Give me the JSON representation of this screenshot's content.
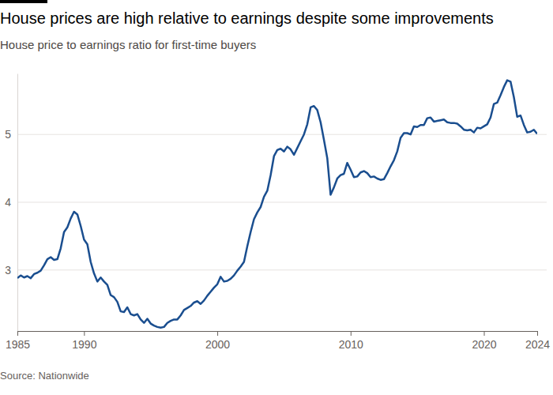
{
  "chart_data": {
    "type": "line",
    "title": "House prices are high relative to earnings despite some improvements",
    "subtitle": "House price to earnings ratio for first-time buyers",
    "source": "Source: Nationwide",
    "color": "#1a4e8f",
    "grid": true,
    "xlim": [
      1985,
      2024
    ],
    "xticks": [
      1985,
      1990,
      2000,
      2010,
      2020,
      2024
    ],
    "ylim": [
      2.1,
      5.9
    ],
    "yticks": [
      3,
      4,
      5
    ],
    "x": [
      1985,
      1985.25,
      1985.5,
      1985.75,
      1986,
      1986.25,
      1986.5,
      1986.75,
      1987,
      1987.25,
      1987.5,
      1987.75,
      1988,
      1988.25,
      1988.5,
      1988.75,
      1989,
      1989.25,
      1989.5,
      1989.75,
      1990,
      1990.25,
      1990.5,
      1990.75,
      1991,
      1991.25,
      1991.5,
      1991.75,
      1992,
      1992.25,
      1992.5,
      1992.75,
      1993,
      1993.25,
      1993.5,
      1993.75,
      1994,
      1994.25,
      1994.5,
      1994.75,
      1995,
      1995.25,
      1995.5,
      1995.75,
      1996,
      1996.25,
      1996.5,
      1996.75,
      1997,
      1997.25,
      1997.5,
      1997.75,
      1998,
      1998.25,
      1998.5,
      1998.75,
      1999,
      1999.25,
      1999.5,
      1999.75,
      2000,
      2000.25,
      2000.5,
      2000.75,
      2001,
      2001.25,
      2001.5,
      2001.75,
      2002,
      2002.25,
      2002.5,
      2002.75,
      2003,
      2003.25,
      2003.5,
      2003.75,
      2004,
      2004.25,
      2004.5,
      2004.75,
      2005,
      2005.25,
      2005.5,
      2005.75,
      2006,
      2006.25,
      2006.5,
      2006.75,
      2007,
      2007.25,
      2007.5,
      2007.75,
      2008,
      2008.25,
      2008.5,
      2008.75,
      2009,
      2009.25,
      2009.5,
      2009.75,
      2010,
      2010.25,
      2010.5,
      2010.75,
      2011,
      2011.25,
      2011.5,
      2011.75,
      2012,
      2012.25,
      2012.5,
      2012.75,
      2013,
      2013.25,
      2013.5,
      2013.75,
      2014,
      2014.25,
      2014.5,
      2014.75,
      2015,
      2015.25,
      2015.5,
      2015.75,
      2016,
      2016.25,
      2016.5,
      2016.75,
      2017,
      2017.25,
      2017.5,
      2017.75,
      2018,
      2018.25,
      2018.5,
      2018.75,
      2019,
      2019.25,
      2019.5,
      2019.75,
      2020,
      2020.25,
      2020.5,
      2020.75,
      2021,
      2021.25,
      2021.5,
      2021.75,
      2022,
      2022.25,
      2022.5,
      2022.75,
      2023,
      2023.25,
      2023.5,
      2023.75,
      2024
    ],
    "values": [
      2.88,
      2.92,
      2.89,
      2.91,
      2.88,
      2.94,
      2.96,
      2.99,
      3.07,
      3.16,
      3.19,
      3.15,
      3.16,
      3.32,
      3.56,
      3.63,
      3.76,
      3.86,
      3.82,
      3.65,
      3.45,
      3.38,
      3.12,
      2.95,
      2.83,
      2.89,
      2.83,
      2.78,
      2.63,
      2.6,
      2.53,
      2.39,
      2.38,
      2.45,
      2.35,
      2.33,
      2.35,
      2.27,
      2.22,
      2.28,
      2.21,
      2.18,
      2.16,
      2.15,
      2.16,
      2.22,
      2.25,
      2.27,
      2.27,
      2.33,
      2.41,
      2.44,
      2.47,
      2.52,
      2.54,
      2.5,
      2.55,
      2.62,
      2.68,
      2.74,
      2.79,
      2.9,
      2.83,
      2.84,
      2.87,
      2.92,
      2.99,
      3.05,
      3.12,
      3.35,
      3.56,
      3.75,
      3.85,
      3.93,
      4.08,
      4.17,
      4.4,
      4.68,
      4.77,
      4.79,
      4.75,
      4.82,
      4.78,
      4.7,
      4.8,
      4.9,
      5.0,
      5.15,
      5.4,
      5.42,
      5.36,
      5.18,
      4.92,
      4.65,
      4.11,
      4.22,
      4.35,
      4.4,
      4.42,
      4.58,
      4.48,
      4.37,
      4.38,
      4.44,
      4.46,
      4.43,
      4.37,
      4.38,
      4.35,
      4.33,
      4.34,
      4.43,
      4.53,
      4.62,
      4.75,
      4.95,
      5.02,
      5.02,
      5.0,
      5.12,
      5.11,
      5.14,
      5.14,
      5.24,
      5.25,
      5.19,
      5.2,
      5.21,
      5.22,
      5.18,
      5.17,
      5.17,
      5.16,
      5.12,
      5.07,
      5.06,
      5.07,
      5.03,
      5.1,
      5.09,
      5.12,
      5.15,
      5.25,
      5.45,
      5.47,
      5.58,
      5.7,
      5.8,
      5.78,
      5.55,
      5.26,
      5.28,
      5.14,
      5.03,
      5.04,
      5.07,
      5.01
    ]
  }
}
